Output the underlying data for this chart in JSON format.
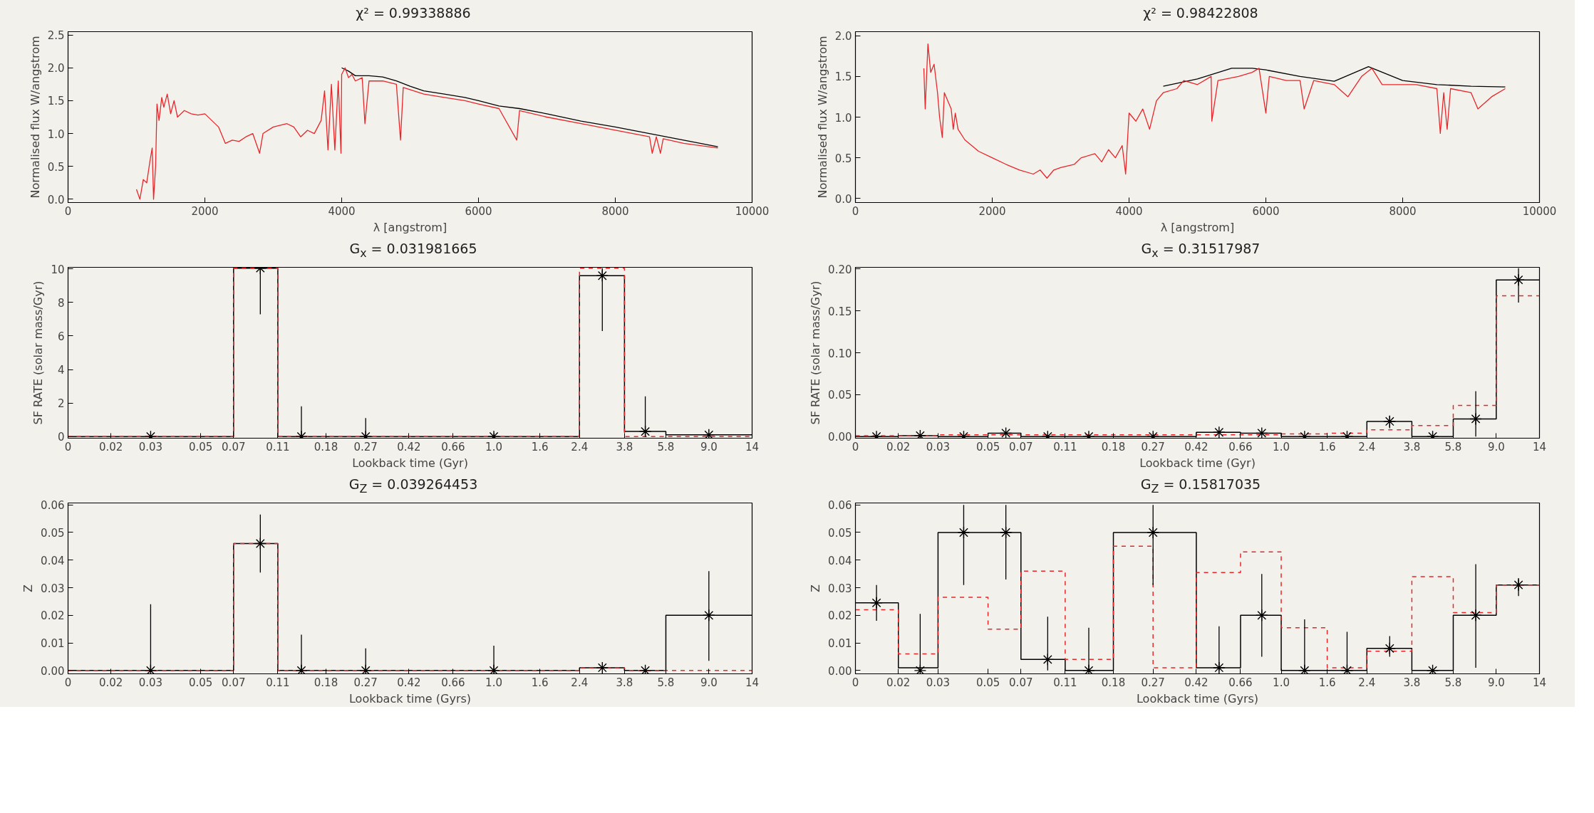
{
  "chart_data": [
    {
      "type": "line",
      "title": "χ² = 0.99338886",
      "xlabel": "λ [angstrom]",
      "ylabel": "Normalised flux W/angstrom",
      "xlim": [
        0,
        10000
      ],
      "ylim": [
        -0.05,
        2.55
      ],
      "xticks": [
        0,
        2000,
        4000,
        6000,
        8000,
        10000
      ],
      "yticks": [
        {
          "value": 0,
          "label": "0.0"
        },
        {
          "value": 0.5,
          "label": "0.5"
        },
        {
          "value": 1,
          "label": "1.0"
        },
        {
          "value": 1.5,
          "label": "1.5"
        },
        {
          "value": 2,
          "label": "2.0"
        },
        {
          "value": 2.5,
          "label": "2.5"
        }
      ],
      "series": [
        {
          "color": "#000000",
          "x": [
            4000,
            4100,
            4200,
            4400,
            4600,
            4800,
            5000,
            5200,
            5500,
            5800,
            6000,
            6300,
            6600,
            7000,
            7500,
            8000,
            8500,
            9000,
            9500
          ],
          "values": [
            2.0,
            1.95,
            1.88,
            1.88,
            1.86,
            1.8,
            1.72,
            1.65,
            1.6,
            1.55,
            1.5,
            1.42,
            1.38,
            1.3,
            1.19,
            1.1,
            1.0,
            0.9,
            0.8
          ]
        },
        {
          "color": "#e8262a",
          "x": [
            1000,
            1050,
            1100,
            1150,
            1200,
            1230,
            1250,
            1280,
            1300,
            1330,
            1370,
            1400,
            1450,
            1500,
            1550,
            1600,
            1700,
            1800,
            1900,
            2000,
            2100,
            2200,
            2300,
            2400,
            2500,
            2600,
            2700,
            2800,
            2850,
            3000,
            3200,
            3300,
            3400,
            3500,
            3600,
            3700,
            3750,
            3800,
            3850,
            3900,
            3950,
            3990,
            4000,
            4050,
            4100,
            4150,
            4200,
            4300,
            4340,
            4400,
            4600,
            4800,
            4860,
            4900,
            5200,
            5500,
            5800,
            6000,
            6300,
            6560,
            6600,
            7000,
            7500,
            8000,
            8500,
            8540,
            8600,
            8660,
            8700,
            9000,
            9500
          ],
          "values": [
            0.15,
            0.0,
            0.3,
            0.25,
            0.6,
            0.78,
            0.0,
            0.5,
            1.45,
            1.2,
            1.55,
            1.4,
            1.6,
            1.3,
            1.5,
            1.25,
            1.35,
            1.3,
            1.28,
            1.3,
            1.2,
            1.1,
            0.85,
            0.9,
            0.88,
            0.95,
            1.0,
            0.7,
            1.0,
            1.1,
            1.15,
            1.1,
            0.95,
            1.05,
            1.0,
            1.2,
            1.65,
            0.75,
            1.75,
            0.75,
            1.8,
            0.7,
            1.9,
            2.0,
            1.85,
            1.9,
            1.8,
            1.85,
            1.15,
            1.8,
            1.8,
            1.75,
            0.9,
            1.7,
            1.6,
            1.55,
            1.5,
            1.45,
            1.38,
            0.9,
            1.35,
            1.25,
            1.15,
            1.05,
            0.95,
            0.7,
            0.95,
            0.7,
            0.92,
            0.85,
            0.78
          ]
        }
      ]
    },
    {
      "type": "line",
      "title": "χ² = 0.98422808",
      "xlabel": "λ [angstrom]",
      "ylabel": "Normalised flux W/angstrom",
      "xlim": [
        0,
        10000
      ],
      "ylim": [
        -0.05,
        2.05
      ],
      "xticks": [
        0,
        2000,
        4000,
        6000,
        8000,
        10000
      ],
      "yticks": [
        {
          "value": 0,
          "label": "0.0"
        },
        {
          "value": 0.5,
          "label": "0.5"
        },
        {
          "value": 1,
          "label": "1.0"
        },
        {
          "value": 1.5,
          "label": "1.5"
        },
        {
          "value": 2,
          "label": "2.0"
        }
      ],
      "series": [
        {
          "color": "#000000",
          "x": [
            4500,
            5000,
            5500,
            5800,
            6000,
            6500,
            7000,
            7500,
            8000,
            8500,
            9000,
            9500
          ],
          "values": [
            1.38,
            1.47,
            1.6,
            1.6,
            1.58,
            1.5,
            1.44,
            1.62,
            1.45,
            1.4,
            1.38,
            1.37
          ]
        },
        {
          "color": "#e8262a",
          "x": [
            1000,
            1020,
            1060,
            1100,
            1150,
            1200,
            1230,
            1270,
            1300,
            1350,
            1400,
            1430,
            1460,
            1500,
            1600,
            1700,
            1800,
            2000,
            2200,
            2400,
            2600,
            2700,
            2800,
            2900,
            3000,
            3200,
            3300,
            3500,
            3600,
            3700,
            3800,
            3900,
            3950,
            4000,
            4100,
            4200,
            4300,
            4400,
            4500,
            4700,
            4800,
            5000,
            5200,
            5210,
            5300,
            5600,
            5800,
            5900,
            6000,
            6050,
            6300,
            6500,
            6560,
            6700,
            7000,
            7200,
            7400,
            7550,
            7700,
            8000,
            8200,
            8500,
            8550,
            8600,
            8650,
            8700,
            9000,
            9100,
            9300,
            9500
          ],
          "values": [
            1.6,
            1.1,
            1.9,
            1.55,
            1.65,
            1.3,
            1.0,
            0.75,
            1.3,
            1.2,
            1.1,
            0.85,
            1.05,
            0.85,
            0.72,
            0.65,
            0.58,
            0.5,
            0.42,
            0.35,
            0.3,
            0.35,
            0.25,
            0.35,
            0.38,
            0.42,
            0.5,
            0.55,
            0.45,
            0.6,
            0.5,
            0.65,
            0.3,
            1.05,
            0.95,
            1.1,
            0.85,
            1.2,
            1.3,
            1.35,
            1.45,
            1.4,
            1.5,
            0.95,
            1.45,
            1.5,
            1.55,
            1.6,
            1.05,
            1.5,
            1.45,
            1.45,
            1.1,
            1.45,
            1.4,
            1.25,
            1.5,
            1.6,
            1.4,
            1.4,
            1.4,
            1.35,
            0.8,
            1.3,
            0.85,
            1.35,
            1.3,
            1.1,
            1.25,
            1.35
          ]
        }
      ]
    },
    {
      "type": "step",
      "title": "G$_{x}$ = 0.031981665",
      "xlabel": "Lookback time (Gyr)",
      "ylabel": "SF RATE (solar mass/Gyr)",
      "log": "x",
      "xlim": [
        0.0129,
        14
      ],
      "ylim": [
        -0.1,
        10.1
      ],
      "xticks": [
        {
          "value": 0.0129,
          "label": "0"
        },
        0.02,
        0.03,
        0.05,
        0.07,
        0.11,
        0.18,
        0.27,
        0.42,
        0.66,
        {
          "value": 1,
          "label": "1.0"
        },
        1.6,
        2.4,
        3.8,
        5.8,
        {
          "value": 9,
          "label": "9.0"
        },
        14
      ],
      "yticks": [
        0,
        2,
        4,
        6,
        8,
        10
      ],
      "series": [
        {
          "color": "#000000",
          "line_style": "solid",
          "x": [
            0.0129,
            0.07,
            0.11,
            0.18,
            0.42,
            2.4,
            3.8,
            5.8,
            14
          ],
          "values": [
            0,
            10.05,
            0,
            0,
            0,
            9.6,
            0.3,
            0.1,
            0.1
          ]
        },
        {
          "color": "#e8262a",
          "line_style": "dashed",
          "x": [
            0.0129,
            0.07,
            0.11,
            2.4,
            3.8,
            14
          ],
          "values": [
            0,
            10.05,
            0,
            10.05,
            0,
            0
          ]
        },
        {
          "type": "scatter",
          "color": "#000000",
          "marker": "cross",
          "x": [
            0.03,
            0.092,
            0.14,
            0.27,
            1.0,
            3.03,
            4.7,
            9.0
          ],
          "values": [
            0,
            10.05,
            0,
            0,
            0,
            9.6,
            0.3,
            0.1
          ],
          "errors": [
            null,
            [
              7.3,
              10.05
            ],
            [
              0,
              1.8
            ],
            [
              0,
              1.1
            ],
            null,
            [
              6.3,
              10.05
            ],
            [
              0,
              2.4
            ],
            null
          ]
        }
      ]
    },
    {
      "type": "step",
      "title": "G$_{x}$ = 0.31517987",
      "xlabel": "Lookback time (Gyr)",
      "ylabel": "SF RATE (solar mass/Gyr)",
      "log": "x",
      "xlim": [
        0.0129,
        14
      ],
      "ylim": [
        -0.002,
        0.202
      ],
      "xticks": [
        {
          "value": 0.0129,
          "label": "0"
        },
        0.02,
        0.03,
        0.05,
        0.07,
        0.11,
        0.18,
        0.27,
        0.42,
        0.66,
        {
          "value": 1,
          "label": "1.0"
        },
        1.6,
        2.4,
        3.8,
        5.8,
        {
          "value": 9,
          "label": "9.0"
        },
        14
      ],
      "yticks": [
        {
          "value": 0,
          "label": "0.00"
        },
        {
          "value": 0.05,
          "label": "0.05"
        },
        {
          "value": 0.1,
          "label": "0.10"
        },
        {
          "value": 0.15,
          "label": "0.15"
        },
        {
          "value": 0.2,
          "label": "0.20"
        }
      ],
      "series": [
        {
          "color": "#000000",
          "line_style": "solid",
          "x": [
            0.0129,
            0.02,
            0.03,
            0.05,
            0.07,
            0.11,
            0.18,
            0.42,
            0.66,
            1.0,
            1.6,
            2.4,
            3.8,
            5.8,
            9.0,
            14
          ],
          "values": [
            0,
            0.001,
            0,
            0.004,
            0,
            0,
            0,
            0.005,
            0.004,
            0,
            0,
            0.018,
            0,
            0.021,
            0.187,
            0.187
          ]
        },
        {
          "color": "#e8262a",
          "line_style": "dashed",
          "x": [
            0.0129,
            0.03,
            0.07,
            0.18,
            0.42,
            1.0,
            1.6,
            2.4,
            3.8,
            5.8,
            9.0,
            14
          ],
          "values": [
            0.001,
            0.002,
            0.002,
            0.002,
            0.002,
            0.003,
            0.004,
            0.008,
            0.013,
            0.037,
            0.168,
            0.168
          ]
        },
        {
          "type": "scatter",
          "color": "#000000",
          "marker": "cross",
          "x": [
            0.016,
            0.025,
            0.039,
            0.06,
            0.092,
            0.14,
            0.27,
            0.53,
            0.82,
            1.27,
            1.96,
            3.03,
            4.7,
            7.3,
            11.3
          ],
          "values": [
            0,
            0.001,
            0,
            0.004,
            0,
            0,
            0,
            0.005,
            0.004,
            0,
            0,
            0.018,
            0,
            0.021,
            0.187
          ],
          "errors": [
            null,
            null,
            null,
            null,
            null,
            null,
            null,
            null,
            null,
            null,
            null,
            [
              0.01,
              0.025
            ],
            null,
            [
              0,
              0.054
            ],
            [
              0.16,
              0.201
            ]
          ]
        }
      ]
    },
    {
      "type": "step",
      "title": "G$_{Z}$ = 0.039264453",
      "xlabel": "Lookback time (Gyrs)",
      "ylabel": "Z",
      "log": "x",
      "xlim": [
        0.0129,
        14
      ],
      "ylim": [
        -0.0012,
        0.0607
      ],
      "xticks": [
        {
          "value": 0.0129,
          "label": "0"
        },
        0.02,
        0.03,
        0.05,
        0.07,
        0.11,
        0.18,
        0.27,
        0.42,
        0.66,
        {
          "value": 1,
          "label": "1.0"
        },
        1.6,
        2.4,
        3.8,
        5.8,
        {
          "value": 9,
          "label": "9.0"
        },
        14
      ],
      "yticks": [
        {
          "value": 0,
          "label": "0.00"
        },
        {
          "value": 0.01,
          "label": "0.01"
        },
        {
          "value": 0.02,
          "label": "0.02"
        },
        {
          "value": 0.03,
          "label": "0.03"
        },
        {
          "value": 0.04,
          "label": "0.04"
        },
        {
          "value": 0.05,
          "label": "0.05"
        },
        {
          "value": 0.06,
          "label": "0.06"
        }
      ],
      "series": [
        {
          "color": "#000000",
          "line_style": "solid",
          "x": [
            0.0129,
            0.07,
            0.11,
            2.4,
            3.8,
            5.8,
            14
          ],
          "values": [
            0,
            0.046,
            0,
            0.001,
            0,
            0.02,
            0.02
          ]
        },
        {
          "color": "#e8262a",
          "line_style": "dashed",
          "x": [
            0.0129,
            0.07,
            0.11,
            2.4,
            3.8,
            14
          ],
          "values": [
            0,
            0.046,
            0,
            0.001,
            0,
            0
          ]
        },
        {
          "type": "scatter",
          "color": "#000000",
          "marker": "cross",
          "x": [
            0.03,
            0.092,
            0.14,
            0.27,
            1.0,
            3.03,
            4.7,
            9.0
          ],
          "values": [
            0,
            0.046,
            0,
            0,
            0,
            0.001,
            0,
            0.02
          ],
          "errors": [
            [
              0,
              0.024
            ],
            [
              0.0355,
              0.0565
            ],
            [
              0,
              0.013
            ],
            [
              0,
              0.008
            ],
            [
              0,
              0.009
            ],
            null,
            null,
            [
              0.0035,
              0.036
            ]
          ]
        }
      ]
    },
    {
      "type": "step",
      "title": "G$_{Z}$ = 0.15817035",
      "xlabel": "Lookback time (Gyrs)",
      "ylabel": "Z",
      "log": "x",
      "xlim": [
        0.0129,
        14
      ],
      "ylim": [
        -0.0012,
        0.0607
      ],
      "xticks": [
        {
          "value": 0.0129,
          "label": "0"
        },
        0.02,
        0.03,
        0.05,
        0.07,
        0.11,
        0.18,
        0.27,
        0.42,
        0.66,
        {
          "value": 1,
          "label": "1.0"
        },
        1.6,
        2.4,
        3.8,
        5.8,
        {
          "value": 9,
          "label": "9.0"
        },
        14
      ],
      "yticks": [
        {
          "value": 0,
          "label": "0.00"
        },
        {
          "value": 0.01,
          "label": "0.01"
        },
        {
          "value": 0.02,
          "label": "0.02"
        },
        {
          "value": 0.03,
          "label": "0.03"
        },
        {
          "value": 0.04,
          "label": "0.04"
        },
        {
          "value": 0.05,
          "label": "0.05"
        },
        {
          "value": 0.06,
          "label": "0.06"
        }
      ],
      "series": [
        {
          "color": "#000000",
          "line_style": "solid",
          "x": [
            0.0129,
            0.02,
            0.03,
            0.07,
            0.11,
            0.18,
            0.42,
            0.66,
            1.0,
            2.4,
            3.8,
            5.8,
            9.0,
            14
          ],
          "values": [
            0.0245,
            0.001,
            0.05,
            0.004,
            0,
            0.05,
            0.001,
            0.02,
            0,
            0.008,
            0,
            0.02,
            0.031,
            0.031
          ]
        },
        {
          "color": "#e8262a",
          "line_style": "dashed",
          "x": [
            0.0129,
            0.02,
            0.03,
            0.05,
            0.07,
            0.11,
            0.18,
            0.27,
            0.42,
            0.66,
            1.0,
            1.6,
            2.4,
            3.8,
            5.8,
            9.0,
            14
          ],
          "values": [
            0.022,
            0.006,
            0.0265,
            0.015,
            0.036,
            0.004,
            0.045,
            0.001,
            0.0355,
            0.043,
            0.0155,
            0.001,
            0.007,
            0.034,
            0.021,
            0.031,
            0.031
          ]
        },
        {
          "type": "scatter",
          "color": "#000000",
          "marker": "cross",
          "x": [
            0.016,
            0.025,
            0.039,
            0.06,
            0.092,
            0.14,
            0.27,
            0.53,
            0.82,
            1.27,
            1.96,
            3.03,
            4.7,
            7.3,
            11.3
          ],
          "values": [
            0.0245,
            0,
            0.05,
            0.05,
            0.004,
            0,
            0.05,
            0.001,
            0.02,
            0,
            0,
            0.008,
            0,
            0.02,
            0.031
          ],
          "errors": [
            [
              0.018,
              0.031
            ],
            [
              0,
              0.0205
            ],
            [
              0.031,
              0.06
            ],
            [
              0.033,
              0.06
            ],
            [
              0,
              0.0195
            ],
            [
              0,
              0.0155
            ],
            [
              0.031,
              0.06
            ],
            [
              0,
              0.016
            ],
            [
              0.005,
              0.035
            ],
            [
              0,
              0.0185
            ],
            [
              0,
              0.014
            ],
            [
              0.005,
              0.0125
            ],
            null,
            [
              0.001,
              0.0385
            ],
            [
              0.027,
              0.0335
            ]
          ]
        }
      ]
    }
  ]
}
